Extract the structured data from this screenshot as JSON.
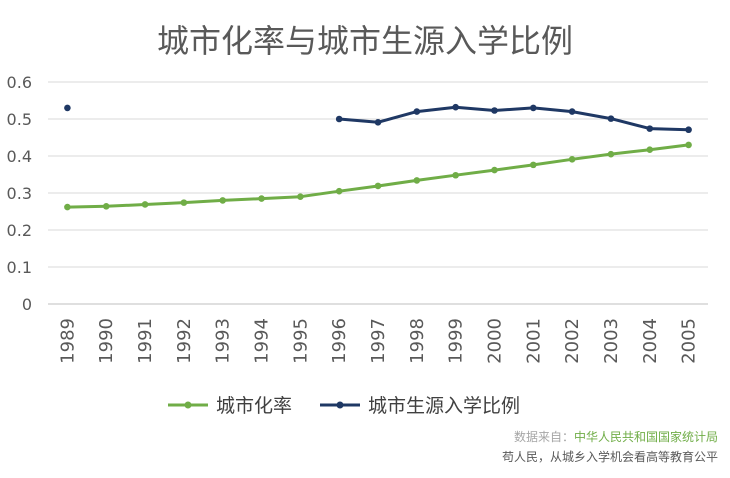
{
  "chart_data": {
    "type": "line",
    "title": "城市化率与城市生源入学比例",
    "xlabel": "",
    "ylabel": "",
    "x": [
      "1989",
      "1990",
      "1991",
      "1992",
      "1993",
      "1994",
      "1995",
      "1996",
      "1997",
      "1998",
      "1999",
      "2000",
      "2001",
      "2002",
      "2003",
      "2004",
      "2005"
    ],
    "ylim": [
      0,
      0.6
    ],
    "yticks": [
      "0",
      "0.1",
      "0.2",
      "0.3",
      "0.4",
      "0.5",
      "0.6"
    ],
    "grid": true,
    "legend_position": "bottom",
    "series": [
      {
        "name": "城市化率",
        "color": "#70ad47",
        "values": [
          0.262,
          0.264,
          0.269,
          0.274,
          0.28,
          0.285,
          0.29,
          0.305,
          0.319,
          0.334,
          0.348,
          0.362,
          0.376,
          0.391,
          0.405,
          0.417,
          0.43
        ]
      },
      {
        "name": "城市生源入学比例",
        "color": "#1f3864",
        "values": [
          0.53,
          null,
          null,
          null,
          null,
          null,
          null,
          0.5,
          0.491,
          0.52,
          0.532,
          0.523,
          0.53,
          0.52,
          0.501,
          0.474,
          0.471
        ]
      }
    ]
  },
  "source": {
    "label": "数据来自：",
    "org": "中华人民共和国国家统计局",
    "note": "苟人民，从城乡入学机会看高等教育公平",
    "label_color": "#a6a6a6",
    "org_color": "#70ad47",
    "note_color": "#595959"
  }
}
